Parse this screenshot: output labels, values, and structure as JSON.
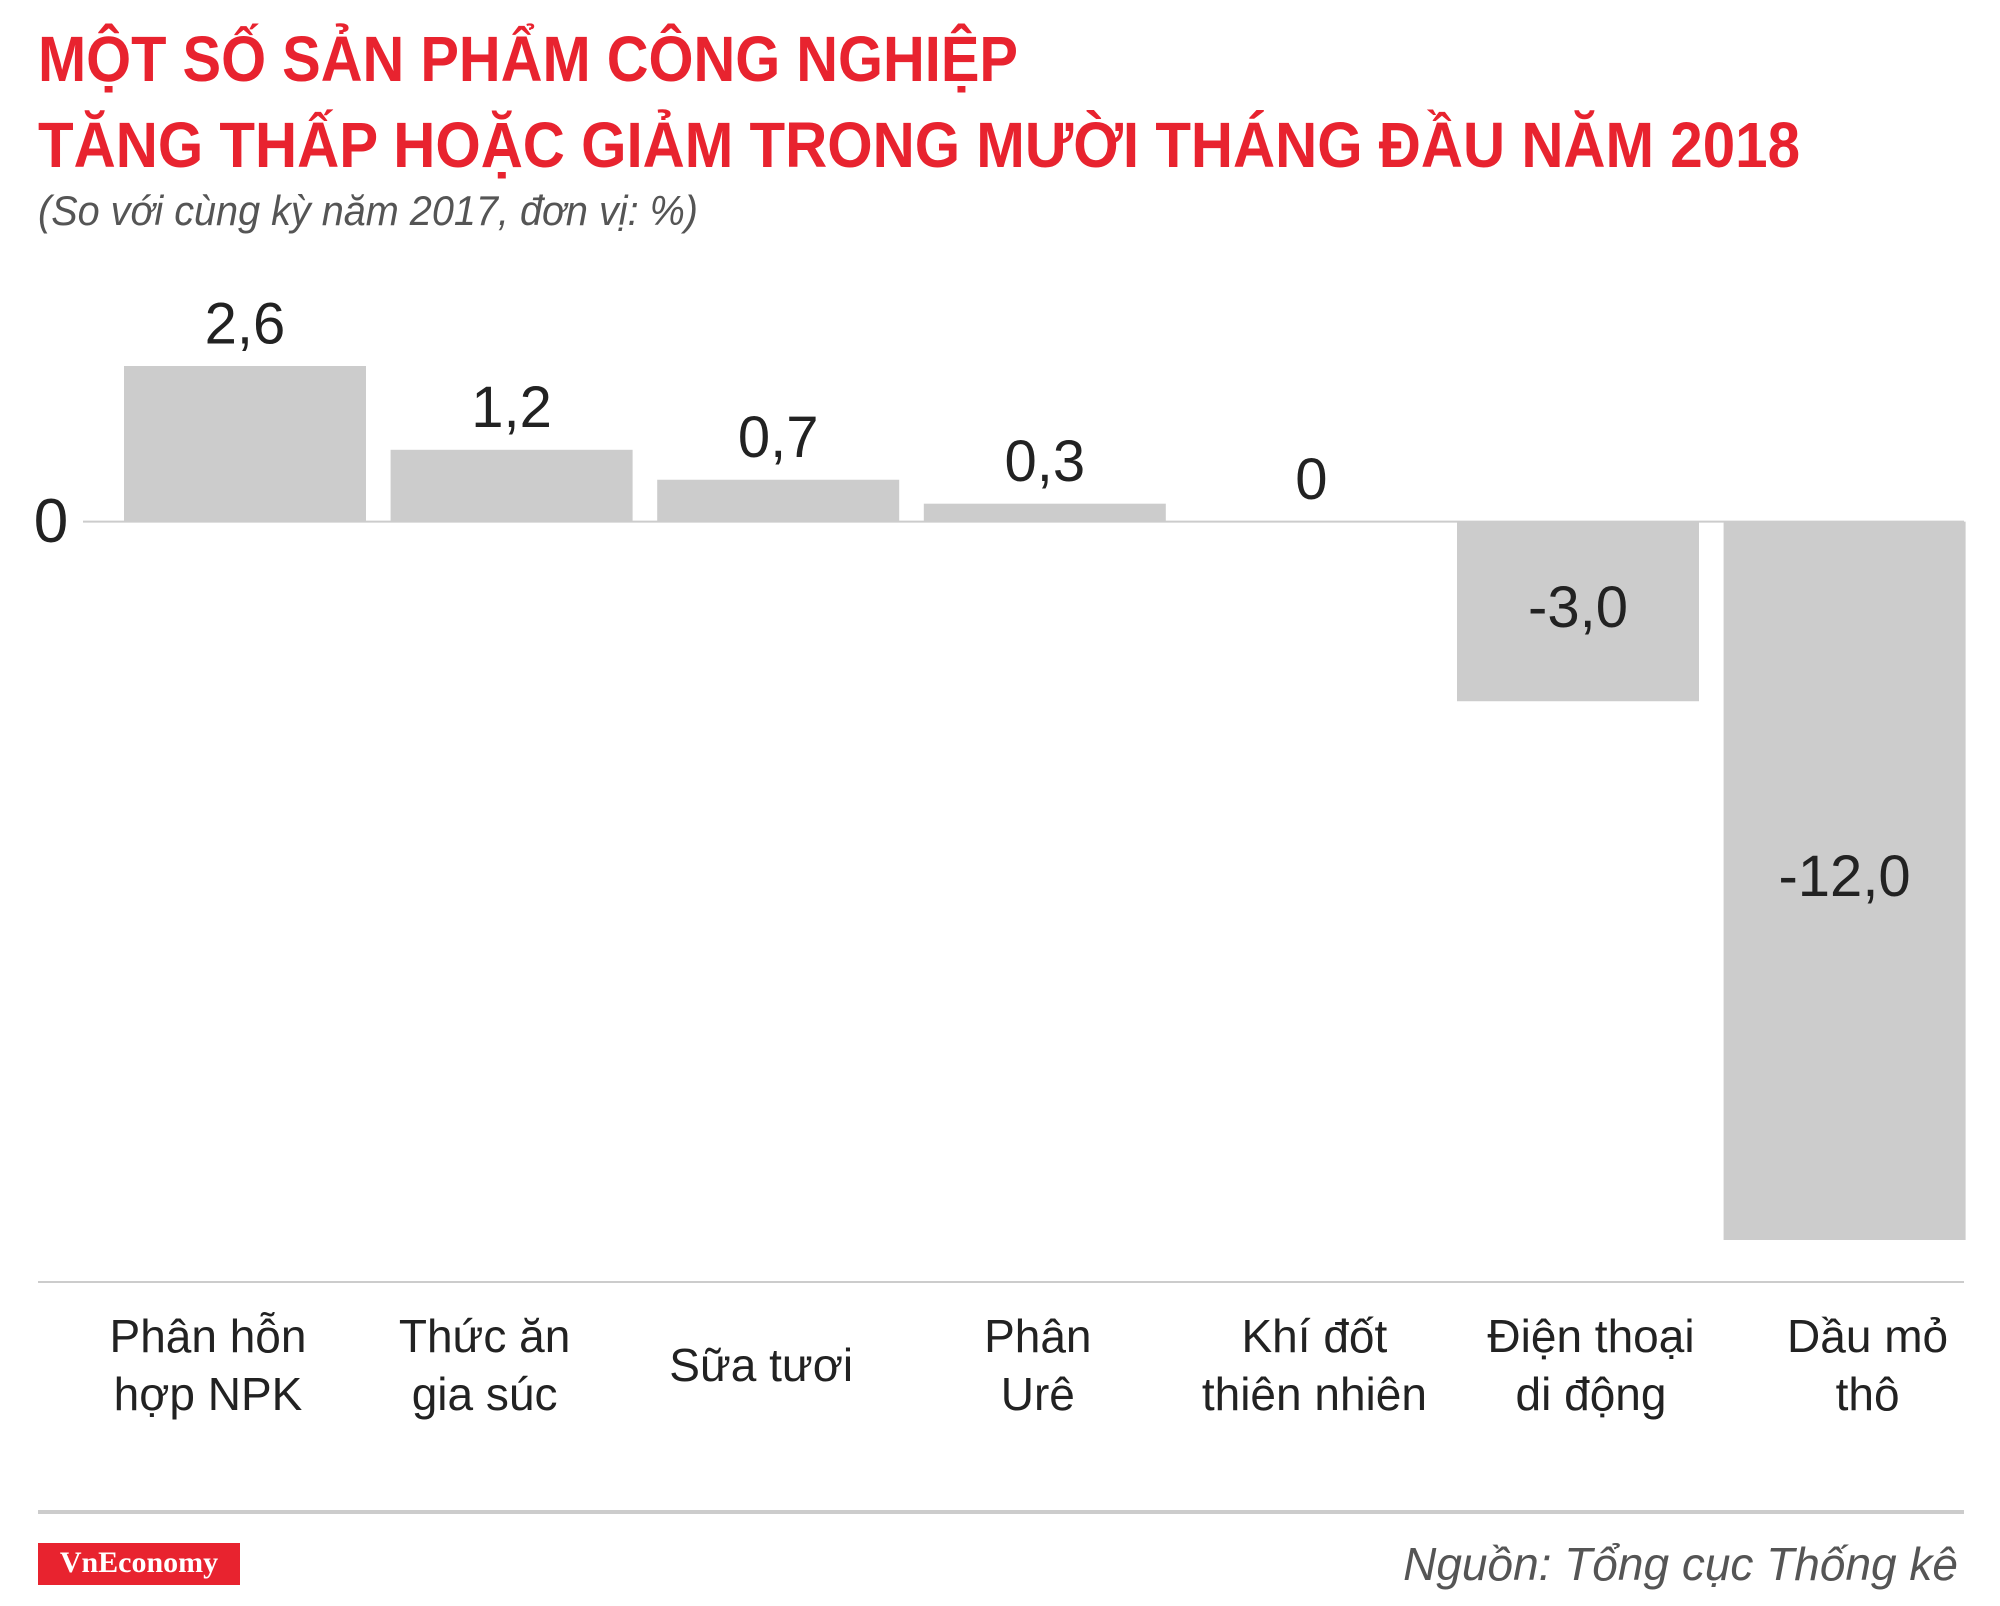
{
  "chart_data": {
    "type": "bar",
    "title": [
      "MỘT SỐ SẢN PHẨM CÔNG NGHIỆP",
      "TĂNG THẤP HOẶC GIẢM TRONG MƯỜI THÁNG ĐẦU NĂM 2018"
    ],
    "subtitle": "(So với cùng kỳ năm 2017, đơn vị: %)",
    "categories": [
      [
        "Phân hỗn",
        "hợp NPK"
      ],
      [
        "Thức ăn",
        "gia súc"
      ],
      [
        "Sữa tươi"
      ],
      [
        "Phân",
        "Urê"
      ],
      [
        "Khí đốt",
        "thiên nhiên"
      ],
      [
        "Điện thoại",
        "di động"
      ],
      [
        "Dầu mỏ",
        "thô"
      ]
    ],
    "values": [
      2.6,
      1.2,
      0.7,
      0.3,
      0,
      -3.0,
      -12.0
    ],
    "value_labels": [
      "2,6",
      "1,2",
      "0,7",
      "0,3",
      "0",
      "-3,0",
      "-12,0"
    ],
    "color": "#cccccc",
    "ylim": [
      -12,
      2.6
    ],
    "yticks": [
      0
    ],
    "logo": "VnEconomy",
    "source": "Nguồn: Tổng cục Thống kê"
  }
}
